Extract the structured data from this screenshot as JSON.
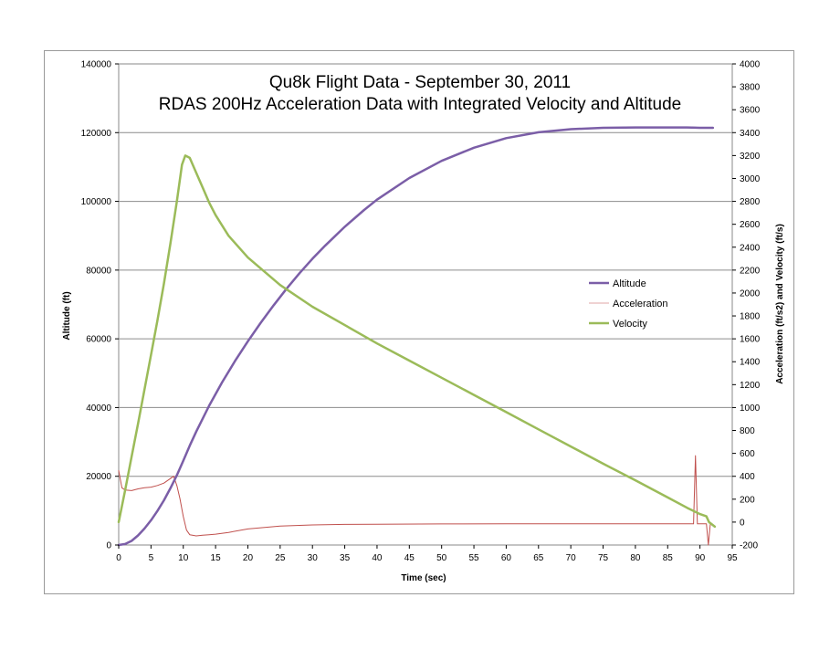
{
  "chart_data": {
    "type": "line",
    "title_line1": "Qu8k Flight Data - September 30, 2011",
    "title_line2": "RDAS 200Hz Acceleration Data with Integrated Velocity and Altitude",
    "xlabel": "Time (sec)",
    "ylabel_left": "Altitude (ft)",
    "ylabel_right": "Acceleration (ft/s2) and Velocity (ft/s)",
    "xlim": [
      0,
      95
    ],
    "x_ticks": [
      "0",
      "5",
      "10",
      "15",
      "20",
      "25",
      "30",
      "35",
      "40",
      "45",
      "50",
      "55",
      "60",
      "65",
      "70",
      "75",
      "80",
      "85",
      "90",
      "95"
    ],
    "ylim_left": [
      0,
      140000
    ],
    "y_left_ticks": [
      "0",
      "20000",
      "40000",
      "60000",
      "80000",
      "100000",
      "120000",
      "140000"
    ],
    "ylim_right": [
      -200,
      4000
    ],
    "y_right_ticks": [
      "-200",
      "0",
      "200",
      "400",
      "600",
      "800",
      "1000",
      "1200",
      "1400",
      "1600",
      "1800",
      "2000",
      "2200",
      "2400",
      "2600",
      "2800",
      "3000",
      "3200",
      "3400",
      "3600",
      "3800",
      "4000"
    ],
    "grid": true,
    "legend_position": "center-right",
    "series": [
      {
        "name": "Altitude",
        "axis": "left",
        "color": "#7b5ea7",
        "points": [
          [
            0,
            0
          ],
          [
            1,
            300
          ],
          [
            2,
            1200
          ],
          [
            3,
            2800
          ],
          [
            4,
            4800
          ],
          [
            5,
            7200
          ],
          [
            6,
            9900
          ],
          [
            7,
            13000
          ],
          [
            8,
            16500
          ],
          [
            9,
            20300
          ],
          [
            10,
            24500
          ],
          [
            11,
            28900
          ],
          [
            12,
            33000
          ],
          [
            14,
            40500
          ],
          [
            16,
            47300
          ],
          [
            18,
            53500
          ],
          [
            20,
            59300
          ],
          [
            22,
            64700
          ],
          [
            24,
            69800
          ],
          [
            26,
            74600
          ],
          [
            28,
            79100
          ],
          [
            30,
            83300
          ],
          [
            32,
            87200
          ],
          [
            35,
            92600
          ],
          [
            38,
            97500
          ],
          [
            40,
            100500
          ],
          [
            45,
            106800
          ],
          [
            50,
            111800
          ],
          [
            55,
            115600
          ],
          [
            60,
            118400
          ],
          [
            65,
            120100
          ],
          [
            70,
            121000
          ],
          [
            75,
            121400
          ],
          [
            80,
            121500
          ],
          [
            85,
            121500
          ],
          [
            88,
            121500
          ],
          [
            90,
            121400
          ],
          [
            92,
            121400
          ]
        ]
      },
      {
        "name": "Acceleration",
        "axis": "right",
        "color": "#c0504d",
        "points": [
          [
            0,
            450
          ],
          [
            0.5,
            300
          ],
          [
            1,
            280
          ],
          [
            2,
            275
          ],
          [
            3,
            290
          ],
          [
            4,
            300
          ],
          [
            5,
            305
          ],
          [
            6,
            320
          ],
          [
            7,
            340
          ],
          [
            8,
            380
          ],
          [
            8.5,
            400
          ],
          [
            9,
            320
          ],
          [
            9.5,
            200
          ],
          [
            10,
            50
          ],
          [
            10.5,
            -70
          ],
          [
            11,
            -110
          ],
          [
            12,
            -120
          ],
          [
            13,
            -115
          ],
          [
            14,
            -110
          ],
          [
            15,
            -105
          ],
          [
            17,
            -90
          ],
          [
            20,
            -60
          ],
          [
            25,
            -35
          ],
          [
            30,
            -25
          ],
          [
            35,
            -20
          ],
          [
            40,
            -18
          ],
          [
            50,
            -16
          ],
          [
            60,
            -15
          ],
          [
            70,
            -15
          ],
          [
            80,
            -15
          ],
          [
            89,
            -15
          ],
          [
            89.3,
            580
          ],
          [
            89.6,
            -15
          ],
          [
            91,
            -15
          ],
          [
            91.3,
            -200
          ],
          [
            91.6,
            -20
          ],
          [
            92,
            -20
          ]
        ]
      },
      {
        "name": "Velocity",
        "axis": "right",
        "color": "#9bbb59",
        "points": [
          [
            0,
            0
          ],
          [
            1,
            280
          ],
          [
            2,
            570
          ],
          [
            3,
            860
          ],
          [
            4,
            1160
          ],
          [
            5,
            1460
          ],
          [
            6,
            1760
          ],
          [
            7,
            2080
          ],
          [
            8,
            2430
          ],
          [
            9,
            2800
          ],
          [
            9.8,
            3120
          ],
          [
            10.3,
            3200
          ],
          [
            11,
            3180
          ],
          [
            12,
            3050
          ],
          [
            13,
            2920
          ],
          [
            14,
            2790
          ],
          [
            15,
            2680
          ],
          [
            17,
            2500
          ],
          [
            20,
            2310
          ],
          [
            25,
            2070
          ],
          [
            30,
            1880
          ],
          [
            35,
            1720
          ],
          [
            40,
            1560
          ],
          [
            45,
            1410
          ],
          [
            50,
            1260
          ],
          [
            55,
            1110
          ],
          [
            60,
            960
          ],
          [
            65,
            810
          ],
          [
            70,
            660
          ],
          [
            75,
            510
          ],
          [
            80,
            365
          ],
          [
            85,
            215
          ],
          [
            88,
            125
          ],
          [
            90,
            70
          ],
          [
            91,
            50
          ],
          [
            91.4,
            0
          ],
          [
            92.3,
            -40
          ]
        ]
      }
    ]
  }
}
